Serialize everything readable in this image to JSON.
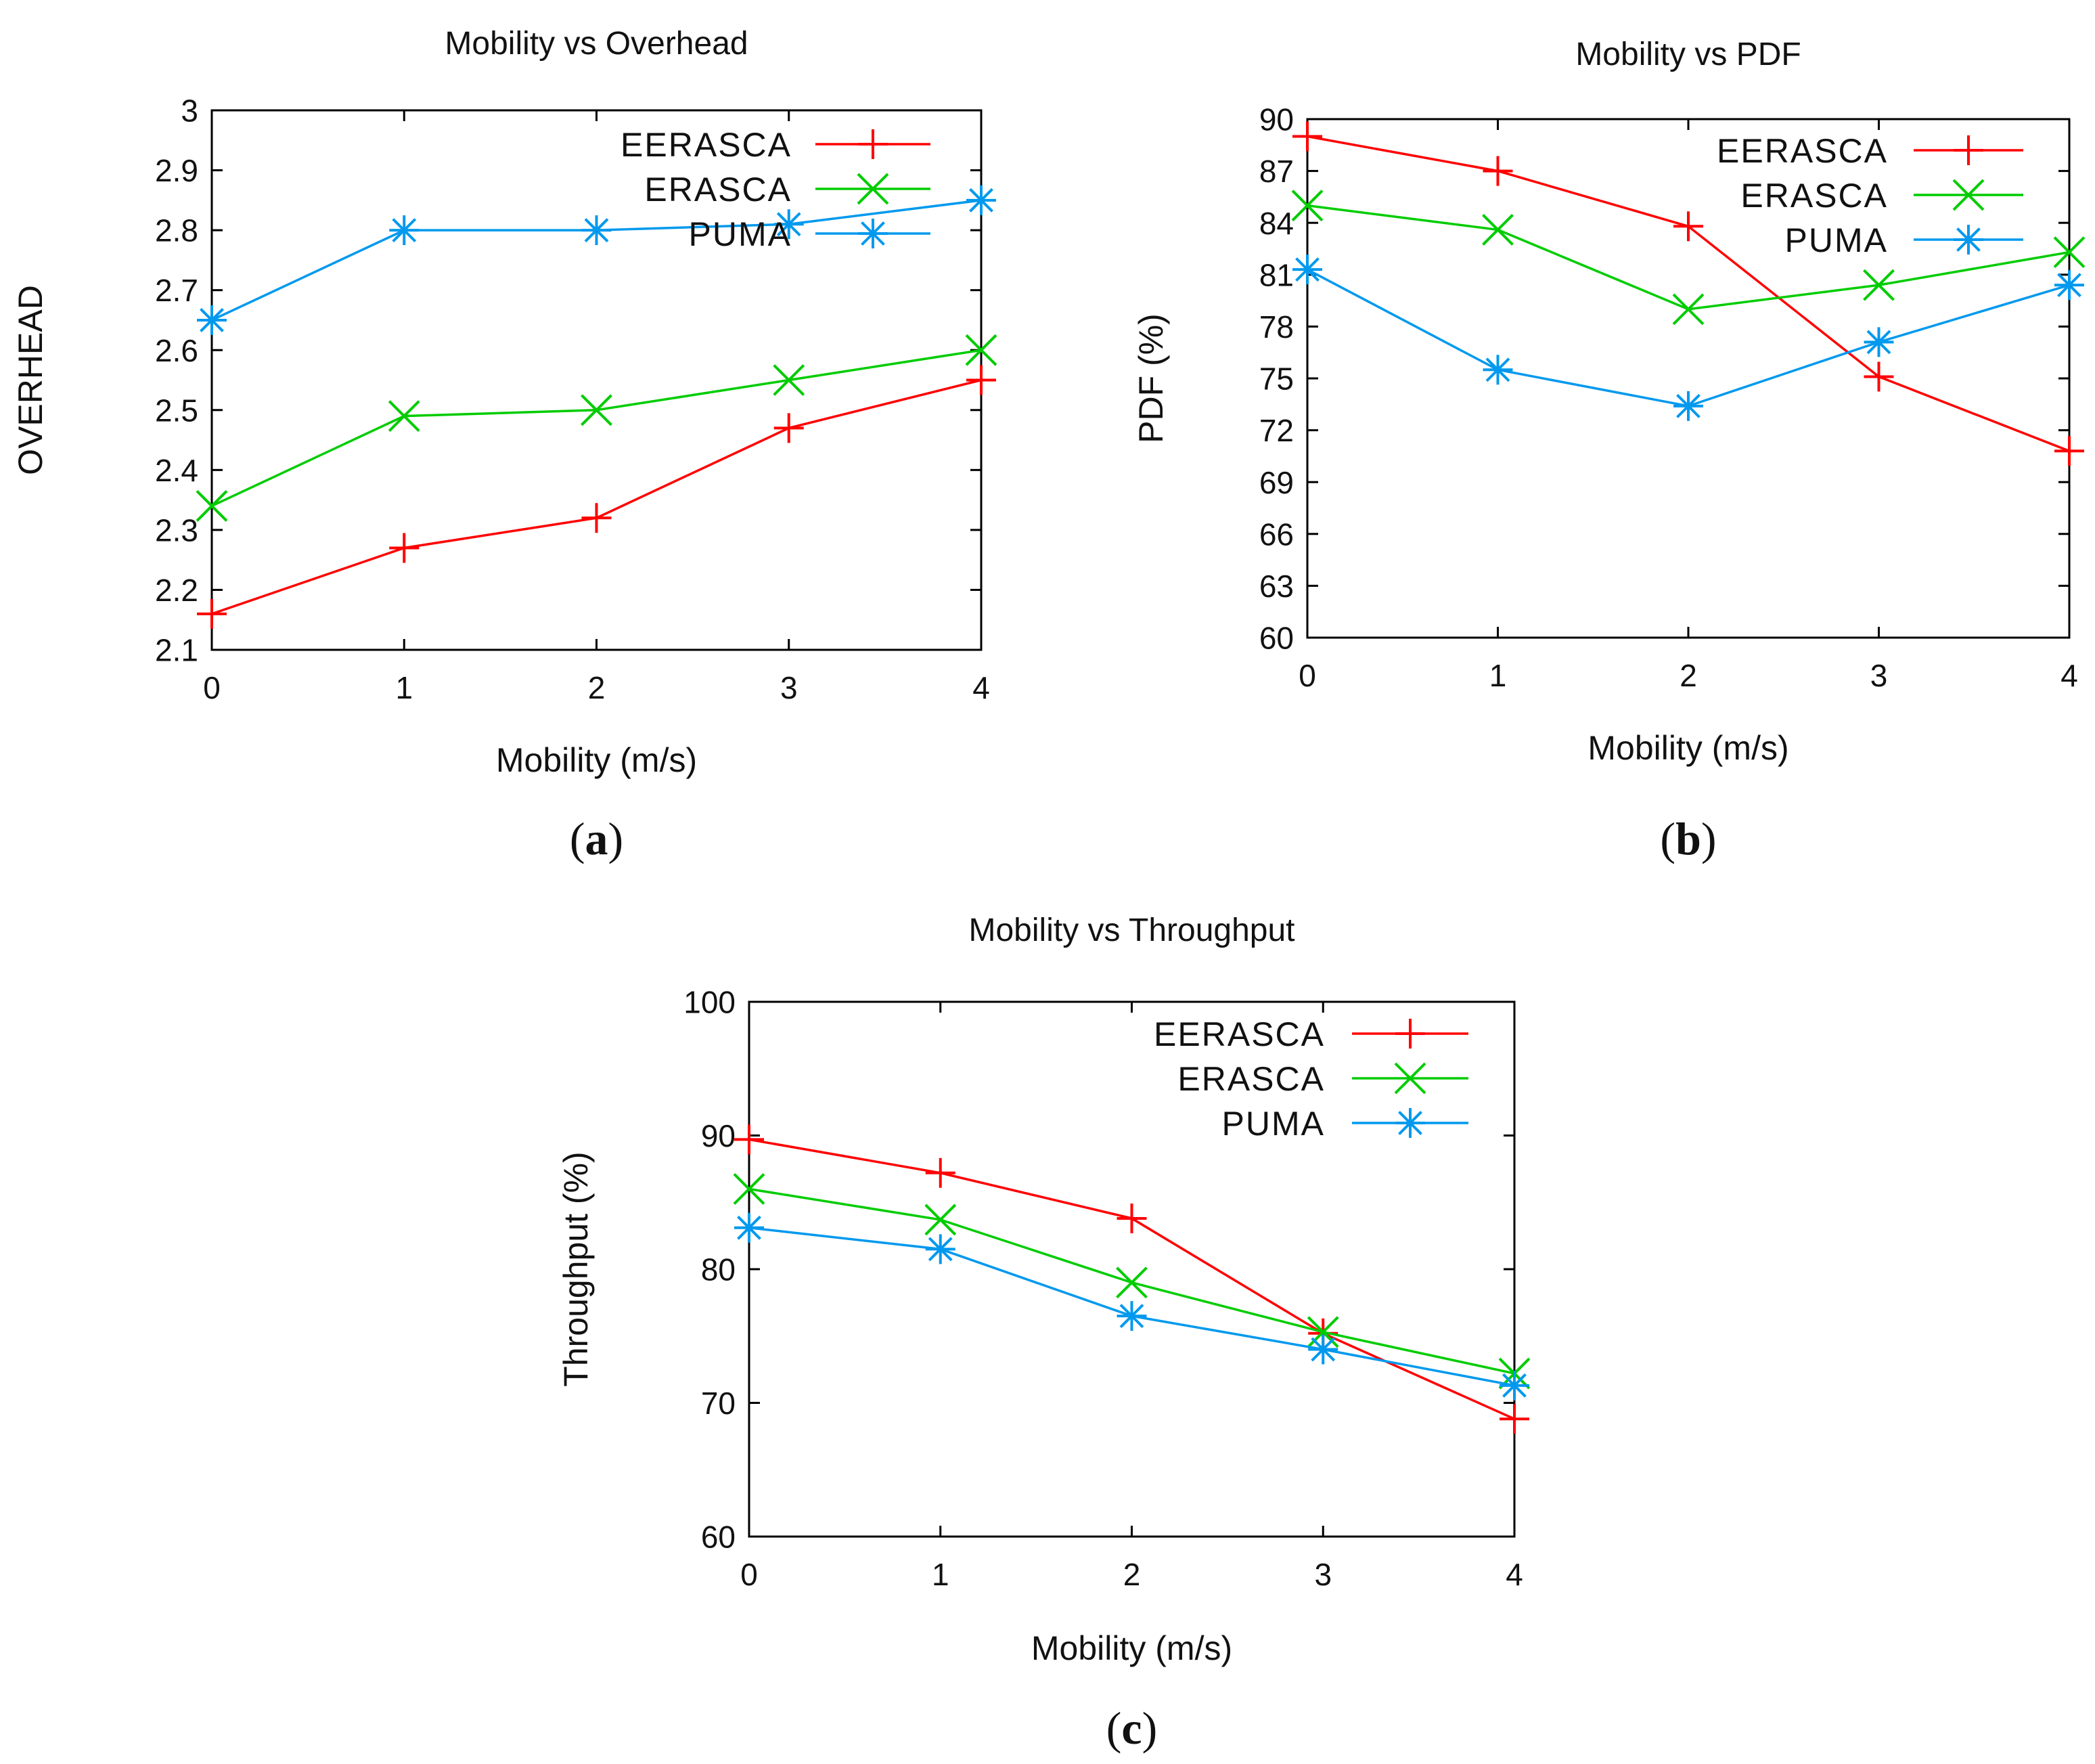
{
  "chart_data": [
    {
      "id": "a",
      "type": "line",
      "title": "Mobility vs Overhead",
      "xlabel": "Mobility (m/s)",
      "ylabel": "OVERHEAD",
      "panel_label": "a",
      "x": [
        0,
        1,
        2,
        3,
        4
      ],
      "xlim": [
        0,
        4
      ],
      "ylim": [
        2.1,
        3.0
      ],
      "xticks": [
        "0",
        "1",
        "2",
        "3",
        "4"
      ],
      "yticks": [
        "2.1",
        "2.2",
        "2.3",
        "2.4",
        "2.5",
        "2.6",
        "2.7",
        "2.8",
        "2.9",
        "3"
      ],
      "legend_position": "top-right",
      "grid": false,
      "series": [
        {
          "name": "EERASCA",
          "color": "#ff0000",
          "marker": "plus",
          "values": [
            2.16,
            2.27,
            2.32,
            2.47,
            2.55
          ]
        },
        {
          "name": "ERASCA",
          "color": "#00cc00",
          "marker": "cross",
          "values": [
            2.34,
            2.49,
            2.5,
            2.55,
            2.6
          ]
        },
        {
          "name": "PUMA",
          "color": "#0099ee",
          "marker": "star",
          "values": [
            2.65,
            2.8,
            2.8,
            2.81,
            2.85
          ]
        }
      ]
    },
    {
      "id": "b",
      "type": "line",
      "title": "Mobility vs PDF",
      "xlabel": "Mobility (m/s)",
      "ylabel": "PDF (%)",
      "panel_label": "b",
      "x": [
        0,
        1,
        2,
        3,
        4
      ],
      "xlim": [
        0,
        4
      ],
      "ylim": [
        60,
        90
      ],
      "xticks": [
        "0",
        "1",
        "2",
        "3",
        "4"
      ],
      "yticks": [
        "60",
        "63",
        "66",
        "69",
        "72",
        "75",
        "78",
        "81",
        "84",
        "87",
        "90"
      ],
      "legend_position": "top-right",
      "grid": false,
      "series": [
        {
          "name": "EERASCA",
          "color": "#ff0000",
          "marker": "plus",
          "values": [
            89.0,
            87.0,
            83.8,
            75.1,
            70.8
          ]
        },
        {
          "name": "ERASCA",
          "color": "#00cc00",
          "marker": "cross",
          "values": [
            85.0,
            83.6,
            79.0,
            80.4,
            82.3
          ]
        },
        {
          "name": "PUMA",
          "color": "#0099ee",
          "marker": "star",
          "values": [
            81.3,
            75.5,
            73.4,
            77.1,
            80.4
          ]
        }
      ]
    },
    {
      "id": "c",
      "type": "line",
      "title": "Mobility vs Throughput",
      "xlabel": "Mobility (m/s)",
      "ylabel": "Throughput (%)",
      "panel_label": "c",
      "x": [
        0,
        1,
        2,
        3,
        4
      ],
      "xlim": [
        0,
        4
      ],
      "ylim": [
        60,
        100
      ],
      "xticks": [
        "0",
        "1",
        "2",
        "3",
        "4"
      ],
      "yticks": [
        "60",
        "70",
        "80",
        "90",
        "100"
      ],
      "legend_position": "top-right",
      "grid": false,
      "series": [
        {
          "name": "EERASCA",
          "color": "#ff0000",
          "marker": "plus",
          "values": [
            89.7,
            87.2,
            83.8,
            75.2,
            68.8
          ]
        },
        {
          "name": "ERASCA",
          "color": "#00cc00",
          "marker": "cross",
          "values": [
            86.0,
            83.7,
            79.0,
            75.3,
            72.2
          ]
        },
        {
          "name": "PUMA",
          "color": "#0099ee",
          "marker": "star",
          "values": [
            83.1,
            81.5,
            76.5,
            74.0,
            71.3
          ]
        }
      ]
    }
  ]
}
